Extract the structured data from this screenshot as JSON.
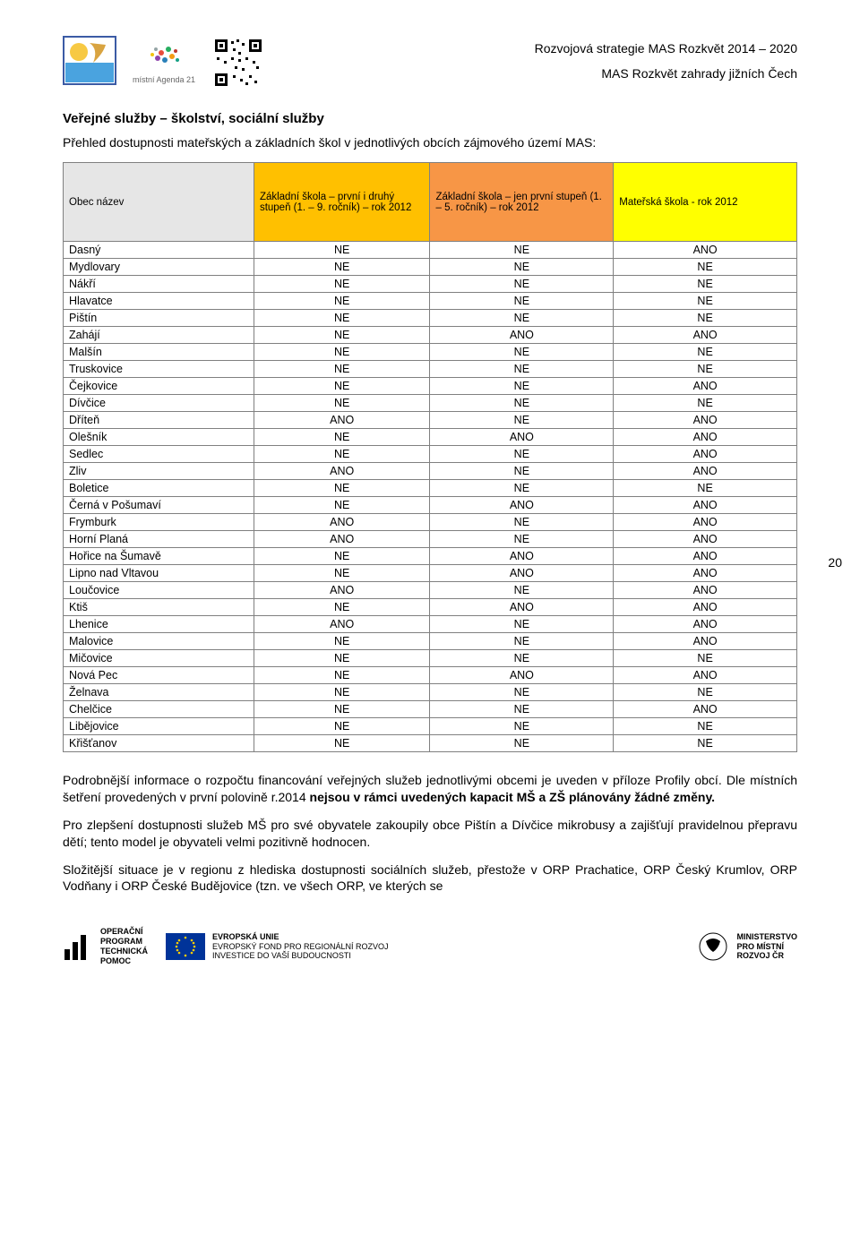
{
  "header": {
    "line1": "Rozvojová strategie MAS Rozkvět 2014 – 2020",
    "line2": "MAS Rozkvět zahrady jižních Čech",
    "agenda_label": "místní Agenda 21"
  },
  "page_number": "20",
  "section_title": "Veřejné služby – školství, sociální služby",
  "intro": "Přehled dostupnosti mateřských a základních škol v jednotlivých obcích zájmového území MAS:",
  "table": {
    "headers": {
      "col0": "Obec název",
      "col1": "Základní škola – první i druhý stupeň (1. – 9. ročník) – rok 2012",
      "col2": "Základní škola – jen první stupeň (1. – 5. ročník) – rok 2012",
      "col3": "Mateřská škola - rok 2012"
    },
    "header_colors": {
      "col0": "#e6e6e6",
      "col1": "#ffc000",
      "col2": "#f79646",
      "col3": "#ffff00"
    },
    "rows": [
      {
        "name": "Dasný",
        "c1": "NE",
        "c2": "NE",
        "c3": "ANO"
      },
      {
        "name": "Mydlovary",
        "c1": "NE",
        "c2": "NE",
        "c3": "NE"
      },
      {
        "name": "Nákří",
        "c1": "NE",
        "c2": "NE",
        "c3": "NE"
      },
      {
        "name": "Hlavatce",
        "c1": "NE",
        "c2": "NE",
        "c3": "NE"
      },
      {
        "name": "Pištín",
        "c1": "NE",
        "c2": "NE",
        "c3": "NE"
      },
      {
        "name": "Zahájí",
        "c1": "NE",
        "c2": "ANO",
        "c3": "ANO"
      },
      {
        "name": "Malšín",
        "c1": "NE",
        "c2": "NE",
        "c3": "NE"
      },
      {
        "name": "Truskovice",
        "c1": "NE",
        "c2": "NE",
        "c3": "NE"
      },
      {
        "name": "Čejkovice",
        "c1": "NE",
        "c2": "NE",
        "c3": "ANO"
      },
      {
        "name": "Dívčice",
        "c1": "NE",
        "c2": "NE",
        "c3": "NE"
      },
      {
        "name": "Dříteň",
        "c1": "ANO",
        "c2": "NE",
        "c3": "ANO"
      },
      {
        "name": "Olešník",
        "c1": "NE",
        "c2": "ANO",
        "c3": "ANO"
      },
      {
        "name": "Sedlec",
        "c1": "NE",
        "c2": "NE",
        "c3": "ANO"
      },
      {
        "name": "Zliv",
        "c1": "ANO",
        "c2": "NE",
        "c3": "ANO"
      },
      {
        "name": "Boletice",
        "c1": "NE",
        "c2": "NE",
        "c3": "NE"
      },
      {
        "name": "Černá v Pošumaví",
        "c1": "NE",
        "c2": "ANO",
        "c3": "ANO"
      },
      {
        "name": "Frymburk",
        "c1": "ANO",
        "c2": "NE",
        "c3": "ANO"
      },
      {
        "name": "Horní Planá",
        "c1": "ANO",
        "c2": "NE",
        "c3": "ANO"
      },
      {
        "name": "Hořice na Šumavě",
        "c1": "NE",
        "c2": "ANO",
        "c3": "ANO"
      },
      {
        "name": "Lipno nad Vltavou",
        "c1": "NE",
        "c2": "ANO",
        "c3": "ANO"
      },
      {
        "name": "Loučovice",
        "c1": "ANO",
        "c2": "NE",
        "c3": "ANO"
      },
      {
        "name": "Ktiš",
        "c1": "NE",
        "c2": "ANO",
        "c3": "ANO"
      },
      {
        "name": "Lhenice",
        "c1": "ANO",
        "c2": "NE",
        "c3": "ANO"
      },
      {
        "name": "Malovice",
        "c1": "NE",
        "c2": "NE",
        "c3": "ANO"
      },
      {
        "name": "Mičovice",
        "c1": "NE",
        "c2": "NE",
        "c3": "NE"
      },
      {
        "name": "Nová Pec",
        "c1": "NE",
        "c2": "ANO",
        "c3": "ANO"
      },
      {
        "name": "Želnava",
        "c1": "NE",
        "c2": "NE",
        "c3": "NE"
      },
      {
        "name": "Chelčice",
        "c1": "NE",
        "c2": "NE",
        "c3": "ANO"
      },
      {
        "name": "Libějovice",
        "c1": "NE",
        "c2": "NE",
        "c3": "NE"
      },
      {
        "name": "Křišťanov",
        "c1": "NE",
        "c2": "NE",
        "c3": "NE"
      }
    ]
  },
  "paragraphs": {
    "p1a": "Podrobnější informace o rozpočtu financování veřejných služeb jednotlivými obcemi je uveden v příloze Profily obcí. Dle místních šetření provedených v první polovině r.2014 ",
    "p1b": "nejsou v rámci uvedených kapacit MŠ a ZŠ plánovány žádné změny.",
    "p2": "Pro zlepšení dostupnosti služeb MŠ pro své obyvatele zakoupily obce Pištín a Dívčice mikrobusy a zajišťují pravidelnou přepravu dětí; tento model je obyvateli velmi pozitivně hodnocen.",
    "p3": "Složitější situace je v regionu z hlediska dostupnosti sociálních služeb, přestože v ORP Prachatice, ORP Český Krumlov, ORP Vodňany i ORP České Budějovice (tzn. ve všech ORP, ve kterých se"
  },
  "footer": {
    "f1_l1": "OPERAČNÍ",
    "f1_l2": "PROGRAM",
    "f1_l3": "TECHNICKÁ",
    "f1_l4": "POMOC",
    "f2_l1": "EVROPSKÁ UNIE",
    "f2_l2": "EVROPSKÝ FOND PRO REGIONÁLNÍ ROZVOJ",
    "f2_l3": "INVESTICE DO VAŠÍ BUDOUCNOSTI",
    "f3_l1": "MINISTERSTVO",
    "f3_l2": "PRO MÍSTNÍ",
    "f3_l3": "ROZVOJ ČR"
  }
}
